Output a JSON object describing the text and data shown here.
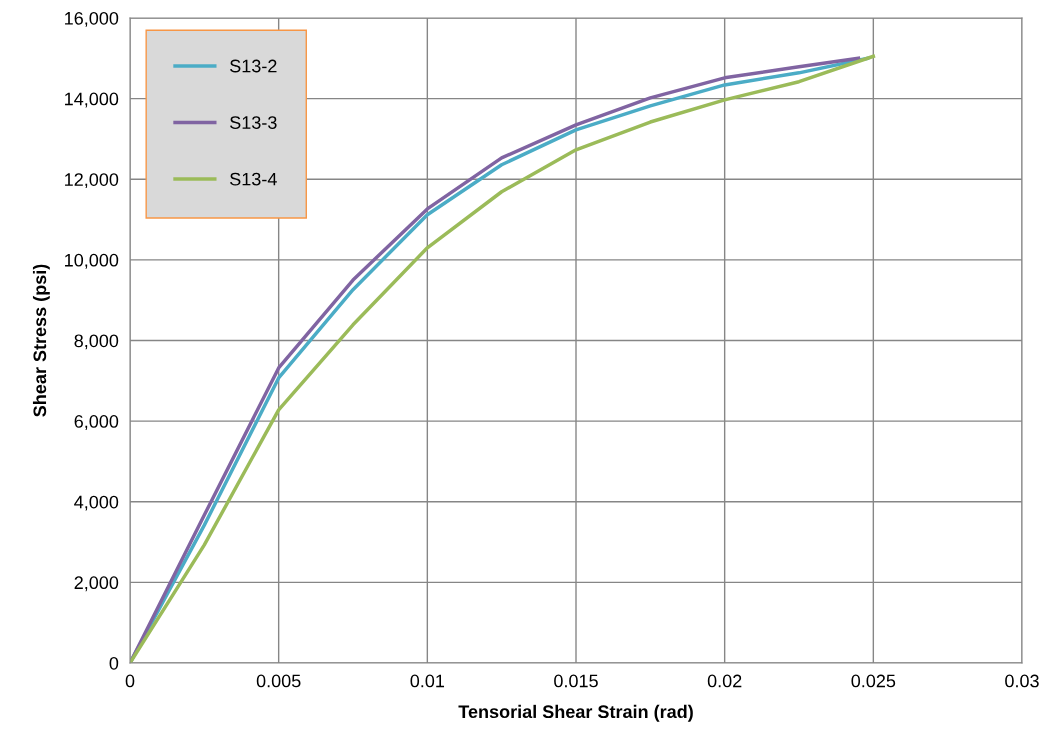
{
  "chart_data": {
    "type": "line",
    "xlabel": "Tensorial Shear Strain (rad)",
    "ylabel": "Shear Stress (psi)",
    "xlim": [
      0,
      0.03
    ],
    "xticks": [
      0,
      0.005,
      0.01,
      0.015,
      0.02,
      0.025,
      0.03
    ],
    "ylim": [
      0,
      16000
    ],
    "yticks": [
      {
        "value": 0,
        "label": "0"
      },
      {
        "value": 2000,
        "label": "2,000"
      },
      {
        "value": 4000,
        "label": "4,000"
      },
      {
        "value": 6000,
        "label": "6,000"
      },
      {
        "value": 8000,
        "label": "8,000"
      },
      {
        "value": 10000,
        "label": "10,000"
      },
      {
        "value": 12000,
        "label": "12,000"
      },
      {
        "value": 14000,
        "label": "14,000"
      },
      {
        "value": 16000,
        "label": "16,000"
      }
    ],
    "grid": true,
    "legend": "top left",
    "marker": "none",
    "line_style": "solid",
    "series": [
      {
        "name": "S13-2",
        "color": "#4bacc6",
        "x": [
          0,
          0.0025,
          0.005,
          0.0075,
          0.01,
          0.0125,
          0.015,
          0.0175,
          0.02,
          0.0225,
          0.0248
        ],
        "values": [
          0,
          3420,
          7070,
          9260,
          11120,
          12360,
          13225,
          13820,
          14340,
          14640,
          15000
        ]
      },
      {
        "name": "S13-3",
        "color": "#8064a2",
        "x": [
          0,
          0.0025,
          0.005,
          0.0075,
          0.01,
          0.0125,
          0.015,
          0.0175,
          0.02,
          0.0225,
          0.0245
        ],
        "values": [
          0,
          3670,
          7320,
          9500,
          11265,
          12530,
          13350,
          14020,
          14516,
          14790,
          15000
        ]
      },
      {
        "name": "S13-4",
        "color": "#9bbb59",
        "x": [
          0,
          0.0025,
          0.005,
          0.0075,
          0.01,
          0.0125,
          0.015,
          0.0175,
          0.02,
          0.0225,
          0.025
        ],
        "values": [
          0,
          2930,
          6280,
          8390,
          10300,
          11690,
          12730,
          13420,
          13970,
          14420,
          15050
        ]
      }
    ]
  }
}
